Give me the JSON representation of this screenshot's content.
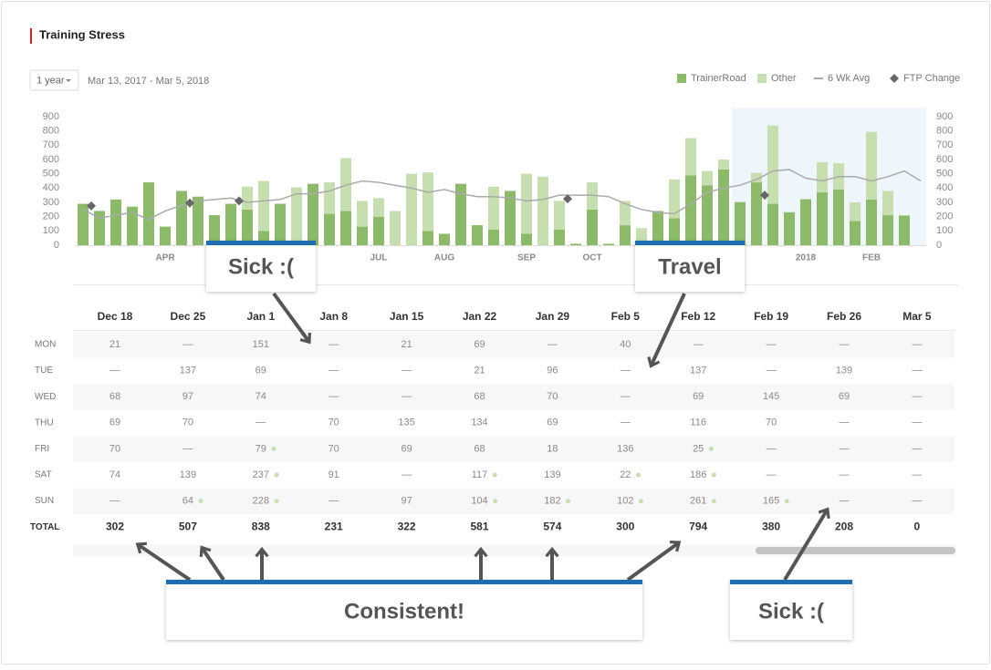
{
  "header": {
    "title": "Training Stress",
    "range_select": "1 year",
    "date_range": "Mar 13, 2017 - Mar 5, 2018"
  },
  "chart_data": {
    "type": "bar",
    "stacked": true,
    "categories": [
      null,
      null,
      null,
      null,
      null,
      "APR",
      null,
      null,
      null,
      null,
      null,
      null,
      null,
      null,
      null,
      null,
      null,
      null,
      "JUL",
      null,
      null,
      null,
      "AUG",
      null,
      null,
      null,
      null,
      "SEP",
      null,
      null,
      null,
      "OCT",
      null,
      null,
      null,
      null,
      null,
      null,
      null,
      null,
      null,
      null,
      null,
      null,
      "2018",
      null,
      null,
      null,
      "FEB",
      null,
      null,
      null
    ],
    "series": [
      {
        "name": "TrainerRoad",
        "color": "#8cba6a",
        "values": [
          290,
          240,
          320,
          270,
          440,
          130,
          380,
          340,
          210,
          290,
          250,
          100,
          290,
          0,
          430,
          220,
          240,
          130,
          200,
          0,
          0,
          100,
          80,
          430,
          140,
          110,
          380,
          80,
          0,
          110,
          10,
          250,
          10,
          140,
          0,
          240,
          190,
          490,
          420,
          530,
          302,
          440,
          290,
          231,
          322,
          370,
          390,
          170,
          320,
          210,
          208,
          0
        ]
      },
      {
        "name": "Other",
        "color": "#c7dfb0",
        "values": [
          0,
          0,
          0,
          0,
          0,
          0,
          0,
          0,
          0,
          0,
          160,
          350,
          0,
          405,
          0,
          220,
          370,
          180,
          130,
          240,
          500,
          410,
          0,
          0,
          0,
          300,
          0,
          420,
          480,
          200,
          0,
          190,
          0,
          170,
          120,
          0,
          270,
          260,
          100,
          70,
          0,
          67,
          548,
          0,
          0,
          211,
          184,
          130,
          474,
          170,
          0,
          0
        ]
      },
      {
        "name": "6 Wk Avg",
        "type": "line",
        "color": "#aaaaaa",
        "values": [
          250,
          190,
          210,
          230,
          180,
          240,
          280,
          310,
          320,
          330,
          300,
          310,
          320,
          360,
          360,
          380,
          420,
          450,
          440,
          420,
          400,
          370,
          390,
          360,
          340,
          340,
          330,
          310,
          320,
          350,
          350,
          350,
          340,
          290,
          250,
          230,
          220,
          290,
          370,
          400,
          420,
          460,
          520,
          530,
          470,
          450,
          480,
          480,
          450,
          480,
          520,
          450
        ]
      },
      {
        "name": "FTP Change",
        "type": "scatter",
        "marker": "diamond",
        "color": "#666666",
        "values": [
          275,
          null,
          null,
          null,
          null,
          null,
          295,
          null,
          null,
          310,
          null,
          null,
          null,
          null,
          null,
          null,
          null,
          null,
          null,
          null,
          null,
          null,
          null,
          null,
          null,
          null,
          null,
          null,
          null,
          325,
          null,
          null,
          null,
          null,
          null,
          null,
          null,
          null,
          null,
          null,
          null,
          350,
          null,
          null,
          null,
          null,
          null,
          null,
          null,
          null,
          null,
          null
        ]
      }
    ],
    "ylim": [
      0,
      900
    ],
    "yticks": [
      0,
      100,
      200,
      300,
      400,
      500,
      600,
      700,
      800,
      900
    ],
    "y2lim": [
      0,
      900
    ],
    "y2ticks": [
      0,
      100,
      200,
      300,
      400,
      500,
      600,
      700,
      800,
      900
    ],
    "legend": "top-right"
  },
  "table": {
    "columns": [
      "Dec 18",
      "Dec 25",
      "Jan 1",
      "Jan 8",
      "Jan 15",
      "Jan 22",
      "Jan 29",
      "Feb 5",
      "Feb 12",
      "Feb 19",
      "Feb 26",
      "Mar 5"
    ],
    "rows": [
      {
        "label": "MON",
        "cells": [
          21,
          "—",
          151,
          "—",
          21,
          69,
          "—",
          40,
          "—",
          "—",
          "—",
          "—"
        ],
        "dots": [
          false,
          false,
          false,
          false,
          false,
          false,
          false,
          false,
          false,
          false,
          false,
          false
        ]
      },
      {
        "label": "TUE",
        "cells": [
          "—",
          137,
          69,
          "—",
          "—",
          21,
          96,
          "—",
          137,
          "—",
          139,
          "—"
        ],
        "dots": [
          false,
          false,
          false,
          false,
          false,
          false,
          false,
          false,
          false,
          false,
          false,
          false
        ]
      },
      {
        "label": "WED",
        "cells": [
          68,
          97,
          74,
          "—",
          "—",
          68,
          70,
          "—",
          69,
          145,
          69,
          "—"
        ],
        "dots": [
          false,
          false,
          false,
          false,
          false,
          false,
          false,
          false,
          false,
          false,
          false,
          false
        ]
      },
      {
        "label": "THU",
        "cells": [
          69,
          70,
          "—",
          70,
          135,
          134,
          69,
          "—",
          116,
          70,
          "—",
          "—"
        ],
        "dots": [
          false,
          false,
          false,
          false,
          false,
          false,
          false,
          false,
          false,
          false,
          false,
          false
        ]
      },
      {
        "label": "FRI",
        "cells": [
          70,
          "—",
          79,
          70,
          69,
          68,
          18,
          136,
          25,
          "—",
          "—",
          "—"
        ],
        "dots": [
          false,
          false,
          true,
          false,
          false,
          false,
          false,
          false,
          true,
          false,
          false,
          false
        ]
      },
      {
        "label": "SAT",
        "cells": [
          74,
          139,
          237,
          91,
          "—",
          117,
          139,
          22,
          186,
          "—",
          "—",
          "—"
        ],
        "dots": [
          false,
          false,
          true,
          false,
          false,
          true,
          false,
          true,
          true,
          false,
          false,
          false
        ]
      },
      {
        "label": "SUN",
        "cells": [
          "—",
          64,
          228,
          "—",
          97,
          104,
          182,
          102,
          261,
          165,
          "—",
          "—"
        ],
        "dots": [
          false,
          true,
          true,
          false,
          false,
          true,
          true,
          true,
          true,
          true,
          false,
          false
        ]
      }
    ],
    "total": {
      "label": "TOTAL",
      "cells": [
        302,
        507,
        838,
        231,
        322,
        581,
        574,
        300,
        794,
        380,
        208,
        0
      ]
    }
  },
  "annotations": [
    "Sick :(",
    "Travel",
    "Consistent!",
    "Sick :("
  ]
}
